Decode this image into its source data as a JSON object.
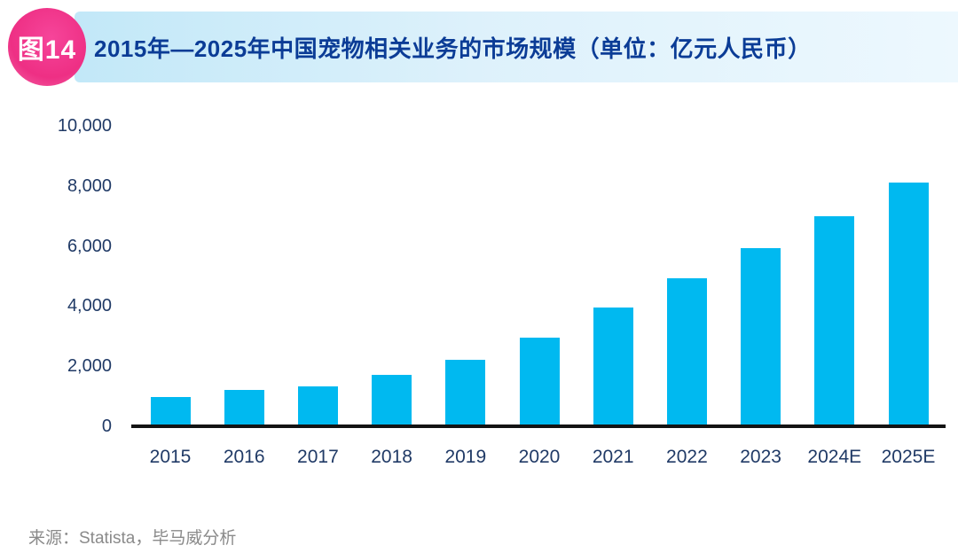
{
  "header": {
    "badge": "图14",
    "title": "2015年—2025年中国宠物相关业务的市场规模（单位：亿元人民币）"
  },
  "footer": {
    "source": "来源：Statista，毕马威分析"
  },
  "colors": {
    "bar": "#00b9f0",
    "badge": "#ee2f84",
    "title_text": "#0b3c96",
    "title_bar_start": "#c2e8f8",
    "title_bar_end": "#edf8fe",
    "axis_text": "#203a66",
    "axis_line": "#131313",
    "source_text": "#8a8a8a"
  },
  "chart_data": {
    "type": "bar",
    "title": "2015年—2025年中国宠物相关业务的市场规模",
    "unit": "亿元人民币",
    "categories": [
      "2015",
      "2016",
      "2017",
      "2018",
      "2019",
      "2020",
      "2021",
      "2022",
      "2023",
      "2024E",
      "2025E"
    ],
    "values": [
      978,
      1220,
      1340,
      1708,
      2212,
      2953,
      3942,
      4936,
      5928,
      7000,
      8114
    ],
    "xlabel": "",
    "ylabel": "",
    "ylim": [
      0,
      10000
    ],
    "yticks": [
      0,
      2000,
      4000,
      6000,
      8000,
      10000
    ],
    "ytick_labels": [
      "0",
      "2,000",
      "4,000",
      "6,000",
      "8,000",
      "10,000"
    ],
    "grid": false,
    "legend_position": "none",
    "bar_color": "#00b9f0"
  }
}
